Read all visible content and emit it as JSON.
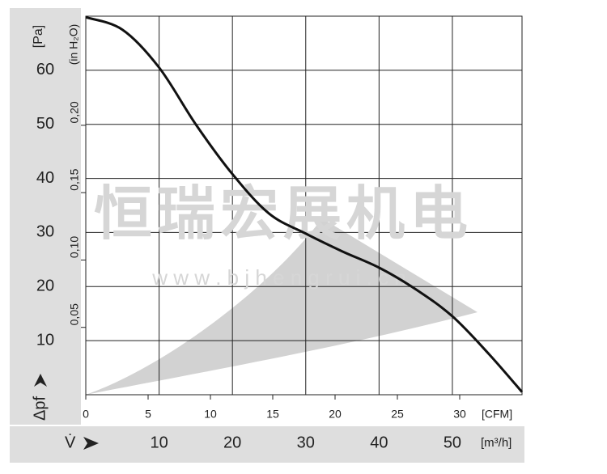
{
  "chart_data": {
    "type": "line",
    "y_unit": "[Pa]",
    "y2_unit": "(in H₂O)",
    "y_symbol": "Δpf",
    "x_symbol": "V̇",
    "x_unit": "[m³/h]",
    "x2_unit": "[CFM]",
    "watermark": "恒瑞宏展机电",
    "watermark_url": "w w w . b j h e n g r u i . c n",
    "x": [
      0,
      5,
      10,
      15,
      20,
      25,
      30,
      35,
      40,
      45,
      50,
      55,
      59.5
    ],
    "series": [
      {
        "color": "#111111",
        "values": [
          69.8,
          67.5,
          60.5,
          50,
          40.8,
          33.5,
          29.8,
          26.5,
          23.5,
          19.5,
          14.5,
          7.5,
          0.5
        ]
      }
    ],
    "xlim": [
      0,
      59.5
    ],
    "xticks": [
      10,
      20,
      30,
      40,
      50
    ],
    "ylim": [
      0,
      70
    ],
    "yticks": [
      10,
      20,
      30,
      40,
      50,
      60
    ],
    "x2lim": [
      0,
      35
    ],
    "x2ticks": [
      0,
      5,
      10,
      15,
      20,
      25,
      30
    ],
    "y2lim": [
      0,
      0.281
    ],
    "y2ticks": [
      {
        "value": 0.05,
        "label": "0,05"
      },
      {
        "value": 0.1,
        "label": "0,10"
      },
      {
        "value": 0.15,
        "label": "0,15"
      },
      {
        "value": 0.2,
        "label": "0,20"
      }
    ],
    "grid": true
  }
}
